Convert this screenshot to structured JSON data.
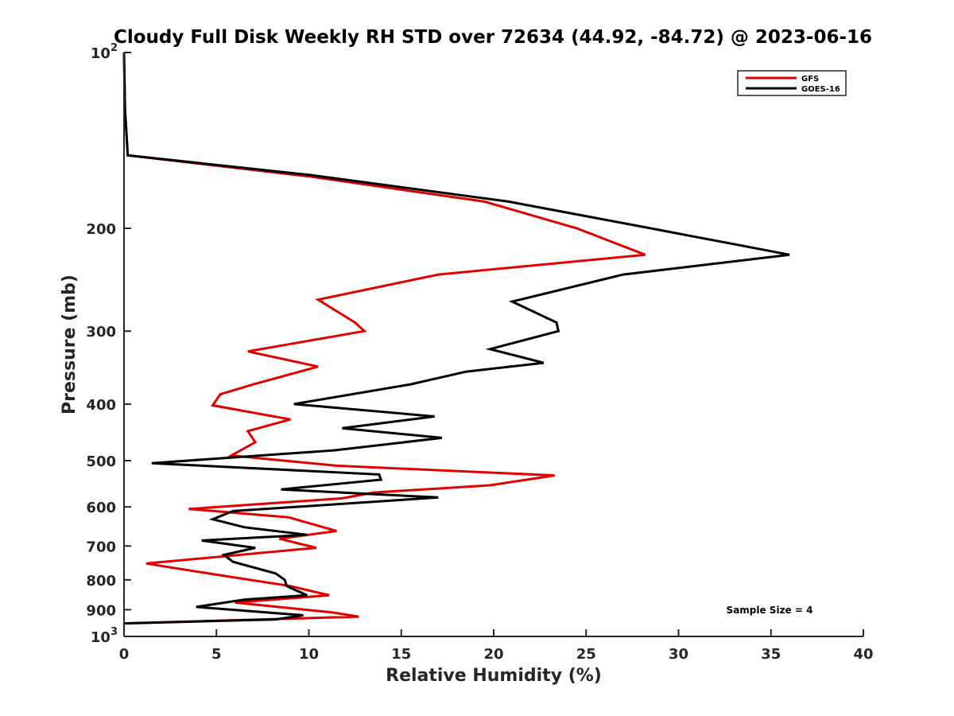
{
  "chart_data": {
    "type": "line",
    "title": "Cloudy Full Disk Weekly RH STD over 72634 (44.92, -84.72) @ 2023-06-16",
    "xlabel": "Relative Humidity (%)",
    "ylabel": "Pressure (mb)",
    "xlim": [
      0,
      40
    ],
    "ylim": [
      100,
      1000
    ],
    "y_scale": "log",
    "y_reversed": true,
    "x_ticks": [
      "0",
      "5",
      "10",
      "15",
      "20",
      "25",
      "30",
      "35",
      "40"
    ],
    "y_ticks": [
      {
        "value": 100,
        "base": "10",
        "exp": "2"
      },
      {
        "value": 200,
        "label": "200"
      },
      {
        "value": 300,
        "label": "300"
      },
      {
        "value": 400,
        "label": "400"
      },
      {
        "value": 500,
        "label": "500"
      },
      {
        "value": 600,
        "label": "600"
      },
      {
        "value": 700,
        "label": "700"
      },
      {
        "value": 800,
        "label": "800"
      },
      {
        "value": 900,
        "label": "900"
      },
      {
        "value": 1000,
        "base": "10",
        "exp": "3"
      }
    ],
    "grid": false,
    "legend_position": "top-right",
    "annotation": "Sample Size = 4",
    "series": [
      {
        "name": "GFS",
        "color": "#e00000",
        "points": [
          [
            0,
            100
          ],
          [
            0.05,
            125
          ],
          [
            0.2,
            150
          ],
          [
            10,
            163
          ],
          [
            19.5,
            180
          ],
          [
            24.5,
            200
          ],
          [
            28.2,
            222
          ],
          [
            17,
            240
          ],
          [
            10.5,
            265
          ],
          [
            12.5,
            290
          ],
          [
            13,
            300
          ],
          [
            6.7,
            325
          ],
          [
            10.5,
            345
          ],
          [
            7,
            370
          ],
          [
            5.2,
            385
          ],
          [
            4.8,
            402
          ],
          [
            9,
            425
          ],
          [
            6.7,
            445
          ],
          [
            7.1,
            465
          ],
          [
            5.8,
            490
          ],
          [
            11.5,
            510
          ],
          [
            23.3,
            530
          ],
          [
            19.8,
            551
          ],
          [
            13.5,
            567
          ],
          [
            11.8,
            580
          ],
          [
            3.5,
            605
          ],
          [
            8.9,
            625
          ],
          [
            11.5,
            660
          ],
          [
            8.4,
            680
          ],
          [
            10.4,
            705
          ],
          [
            1.2,
            750
          ],
          [
            5.7,
            790
          ],
          [
            9,
            820
          ],
          [
            11.1,
            850
          ],
          [
            6,
            875
          ],
          [
            11.3,
            910
          ],
          [
            12.7,
            925
          ],
          [
            0,
            950
          ]
        ]
      },
      {
        "name": "GOES-16",
        "color": "#000000",
        "points": [
          [
            0,
            100
          ],
          [
            0.05,
            125
          ],
          [
            0.2,
            150
          ],
          [
            10,
            162
          ],
          [
            20.8,
            180
          ],
          [
            28.5,
            200
          ],
          [
            36,
            222
          ],
          [
            27,
            240
          ],
          [
            21,
            267
          ],
          [
            23.4,
            290
          ],
          [
            23.5,
            300
          ],
          [
            19.8,
            322
          ],
          [
            22.7,
            340
          ],
          [
            18.5,
            352
          ],
          [
            15.5,
            370
          ],
          [
            9.2,
            400
          ],
          [
            16.8,
            420
          ],
          [
            11.8,
            440
          ],
          [
            17.2,
            457
          ],
          [
            11.4,
            480
          ],
          [
            1.5,
            505
          ],
          [
            13.8,
            528
          ],
          [
            13.9,
            539
          ],
          [
            8.5,
            560
          ],
          [
            17,
            578
          ],
          [
            5.9,
            610
          ],
          [
            4.8,
            630
          ],
          [
            6.5,
            650
          ],
          [
            9.9,
            670
          ],
          [
            4.2,
            685
          ],
          [
            7.1,
            705
          ],
          [
            5.4,
            725
          ],
          [
            5.9,
            745
          ],
          [
            8.2,
            780
          ],
          [
            8.7,
            800
          ],
          [
            8.8,
            820
          ],
          [
            9.9,
            850
          ],
          [
            6.5,
            865
          ],
          [
            3.9,
            890
          ],
          [
            9.7,
            920
          ],
          [
            8.2,
            935
          ],
          [
            0,
            950
          ]
        ]
      }
    ]
  }
}
